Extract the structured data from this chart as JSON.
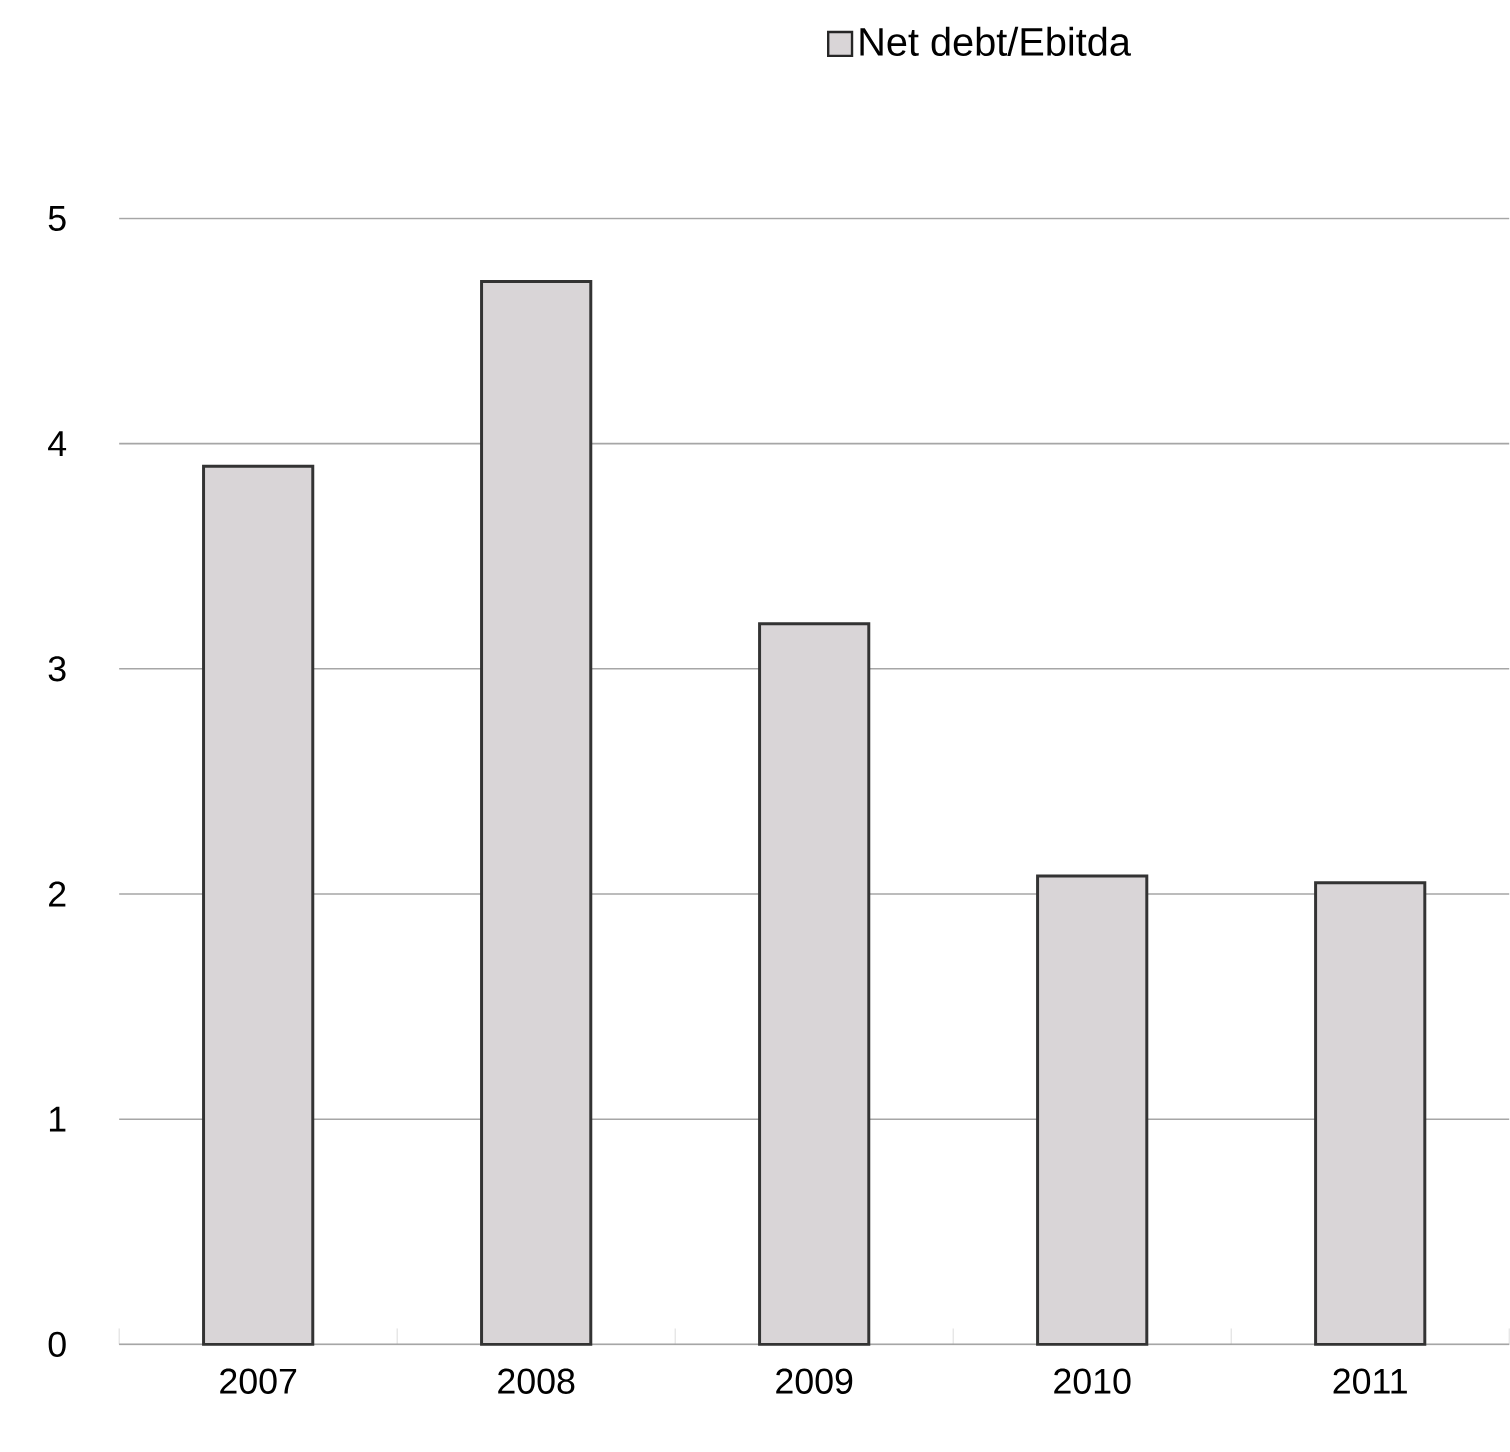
{
  "chart_data": {
    "type": "bar",
    "categories": [
      "2007",
      "2008",
      "2009",
      "2010",
      "2011"
    ],
    "series": [
      {
        "name": "Net debt/Ebitda",
        "color": "#d9d5d7",
        "values": [
          3.9,
          4.72,
          3.2,
          2.08,
          2.05
        ]
      }
    ],
    "ylim": [
      0,
      5
    ],
    "yticks": [
      0,
      1,
      2,
      3,
      4,
      5
    ],
    "grid": "y",
    "legend": "top"
  }
}
